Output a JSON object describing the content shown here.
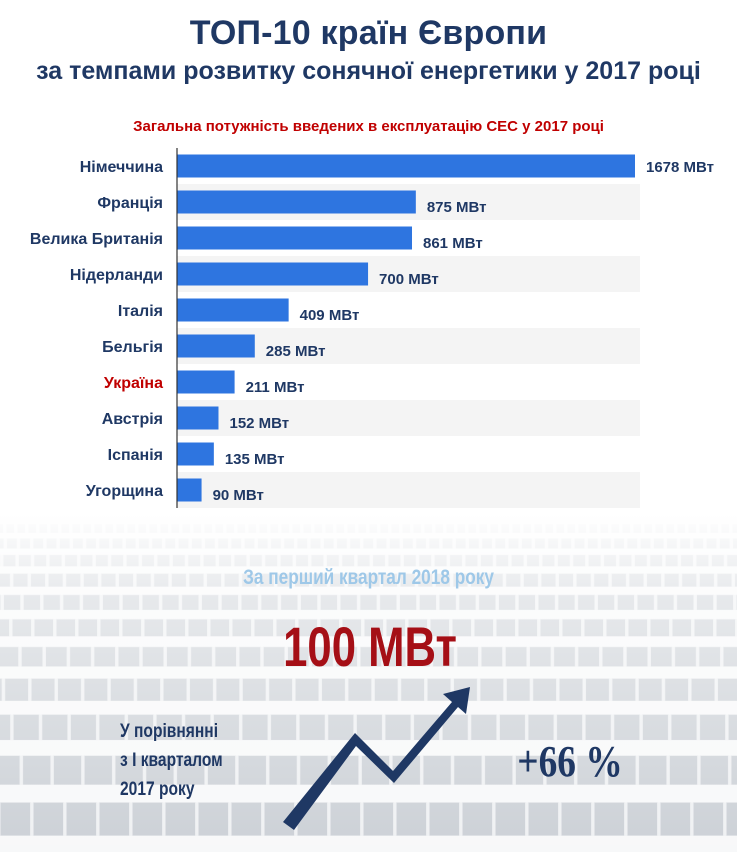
{
  "header": {
    "title": "ТОП-10 країн Європи",
    "subtitle": "за темпами розвитку сонячної енергетики у 2017 році"
  },
  "chart_data": {
    "type": "bar",
    "orientation": "horizontal",
    "title": "Загальна потужність введених в експлуатацію СЕС у 2017 році",
    "categories": [
      "Німеччина",
      "Франція",
      "Велика Британія",
      "Нідерланди",
      "Італія",
      "Бельгія",
      "Україна",
      "Австрія",
      "Іспанія",
      "Угорщина"
    ],
    "values": [
      1678,
      875,
      861,
      700,
      409,
      285,
      211,
      152,
      135,
      90
    ],
    "value_labels": [
      "1678 МВт",
      "875 МВт",
      "861 МВт",
      "700 МВт",
      "409 МВт",
      "285 МВт",
      "211 МВт",
      "152 МВт",
      "135 МВт",
      "90 МВт"
    ],
    "unit": "МВт",
    "highlight_category": "Україна",
    "xlim": [
      0,
      1678
    ],
    "grid": false,
    "legend": false,
    "colors": {
      "bar": "#2e75e0",
      "label": "#1f3864",
      "highlight_label": "#c00000",
      "row_band": "#f4f4f4"
    }
  },
  "bottom": {
    "quarter_label": "За перший квартал 2018 року",
    "quarter_value": "100 МВт",
    "comparison_lines": [
      "У порівнянні",
      "з І кварталом",
      "2017 року"
    ],
    "growth": "+66 %",
    "arrow_color": "#1f3864"
  }
}
